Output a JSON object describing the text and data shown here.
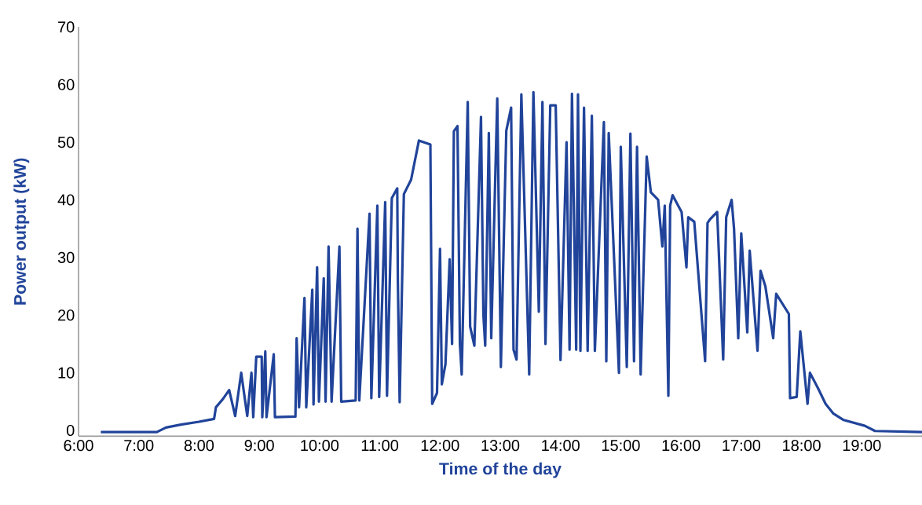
{
  "chart_data": {
    "type": "line",
    "xlabel": "Time of the day",
    "ylabel": "Power output (kW)",
    "color": "#21449a",
    "grid": false,
    "marker": "none",
    "line_style": "solid",
    "xlim": [
      6,
      20
    ],
    "ylim": [
      -1,
      70
    ],
    "xticks": [
      {
        "value": 6,
        "label": "6:00"
      },
      {
        "value": 7,
        "label": "7:00"
      },
      {
        "value": 8,
        "label": "8:00"
      },
      {
        "value": 9,
        "label": "9:00"
      },
      {
        "value": 10,
        "label": "10:00"
      },
      {
        "value": 11,
        "label": "11:00"
      },
      {
        "value": 12,
        "label": "12:00"
      },
      {
        "value": 13,
        "label": "13:00"
      },
      {
        "value": 14,
        "label": "14:00"
      },
      {
        "value": 15,
        "label": "15:00"
      },
      {
        "value": 16,
        "label": "16:00"
      },
      {
        "value": 17,
        "label": "17:00"
      },
      {
        "value": 18,
        "label": "18:00"
      },
      {
        "value": 19,
        "label": "19:00"
      }
    ],
    "yticks": [
      0,
      10,
      20,
      30,
      40,
      50,
      60,
      70
    ],
    "x": [
      6.37,
      7.3,
      7.45,
      7.7,
      8.0,
      8.25,
      8.28,
      8.4,
      8.5,
      8.6,
      8.7,
      8.8,
      8.87,
      8.9,
      8.95,
      9.04,
      9.05,
      9.1,
      9.12,
      9.24,
      9.26,
      9.6,
      9.62,
      9.66,
      9.75,
      9.78,
      9.88,
      9.9,
      9.96,
      9.99,
      10.07,
      10.1,
      10.15,
      10.2,
      10.33,
      10.36,
      10.6,
      10.63,
      10.66,
      10.83,
      10.86,
      10.96,
      10.99,
      11.09,
      11.12,
      11.2,
      11.29,
      11.3,
      11.33,
      11.4,
      11.52,
      11.65,
      11.84,
      11.87,
      11.95,
      12.0,
      12.03,
      12.09,
      12.16,
      12.2,
      12.23,
      12.29,
      12.33,
      12.36,
      12.46,
      12.5,
      12.57,
      12.68,
      12.72,
      12.75,
      12.81,
      12.85,
      12.95,
      13.01,
      13.1,
      13.18,
      13.22,
      13.27,
      13.35,
      13.48,
      13.55,
      13.64,
      13.7,
      13.75,
      13.83,
      13.92,
      14.0,
      14.1,
      14.15,
      14.19,
      14.26,
      14.29,
      14.33,
      14.39,
      14.45,
      14.52,
      14.57,
      14.72,
      14.76,
      14.8,
      14.97,
      15.0,
      15.1,
      15.16,
      15.22,
      15.27,
      15.33,
      15.43,
      15.5,
      15.62,
      15.69,
      15.73,
      15.79,
      15.82,
      15.86,
      16.01,
      16.09,
      16.12,
      16.22,
      16.4,
      16.44,
      16.48,
      16.6,
      16.7,
      16.75,
      16.84,
      16.88,
      16.95,
      17.0,
      17.1,
      17.14,
      17.27,
      17.32,
      17.4,
      17.53,
      17.58,
      17.79,
      17.81,
      17.92,
      17.98,
      18.1,
      18.14,
      18.27,
      18.4,
      18.53,
      18.7,
      19.05,
      19.22,
      20.0
    ],
    "values": [
      -0.3,
      -0.3,
      0.5,
      1.0,
      1.5,
      2.0,
      4.0,
      5.5,
      7.0,
      2.5,
      10.0,
      2.5,
      10.0,
      2.3,
      12.8,
      12.8,
      2.3,
      13.7,
      2.3,
      13.2,
      2.3,
      2.4,
      16.0,
      4.0,
      23.0,
      4.0,
      24.4,
      4.5,
      28.3,
      5.0,
      26.4,
      5.0,
      31.9,
      5.0,
      31.9,
      5.0,
      5.2,
      35.0,
      5.2,
      37.6,
      5.6,
      39.0,
      5.8,
      39.6,
      6.0,
      40.3,
      42.0,
      26.0,
      4.9,
      41.0,
      43.5,
      50.3,
      49.6,
      4.6,
      6.5,
      31.5,
      8.0,
      11.5,
      29.7,
      15.0,
      51.9,
      52.8,
      15.0,
      9.7,
      57.0,
      18.0,
      14.7,
      54.4,
      20.0,
      14.7,
      51.6,
      16.0,
      57.6,
      11.0,
      52.0,
      56.0,
      14.0,
      12.3,
      58.3,
      9.7,
      58.7,
      20.6,
      57.0,
      15.0,
      56.4,
      56.4,
      12.2,
      50.0,
      14.0,
      58.4,
      14.0,
      58.3,
      13.8,
      56.0,
      13.8,
      54.6,
      13.8,
      53.5,
      12.0,
      51.6,
      10.0,
      49.2,
      11.0,
      51.5,
      12.0,
      49.2,
      9.7,
      47.5,
      41.3,
      40.0,
      31.9,
      39.0,
      6.0,
      39.0,
      40.8,
      37.9,
      28.3,
      37.0,
      36.2,
      12.0,
      36.0,
      36.6,
      37.9,
      12.3,
      37.0,
      40.0,
      35.0,
      16.0,
      34.2,
      17.0,
      31.2,
      13.8,
      27.7,
      25.0,
      16.0,
      23.7,
      20.2,
      5.6,
      5.8,
      17.2,
      4.6,
      10.0,
      7.4,
      4.6,
      2.9,
      1.8,
      0.8,
      -0.1,
      -0.3
    ]
  }
}
